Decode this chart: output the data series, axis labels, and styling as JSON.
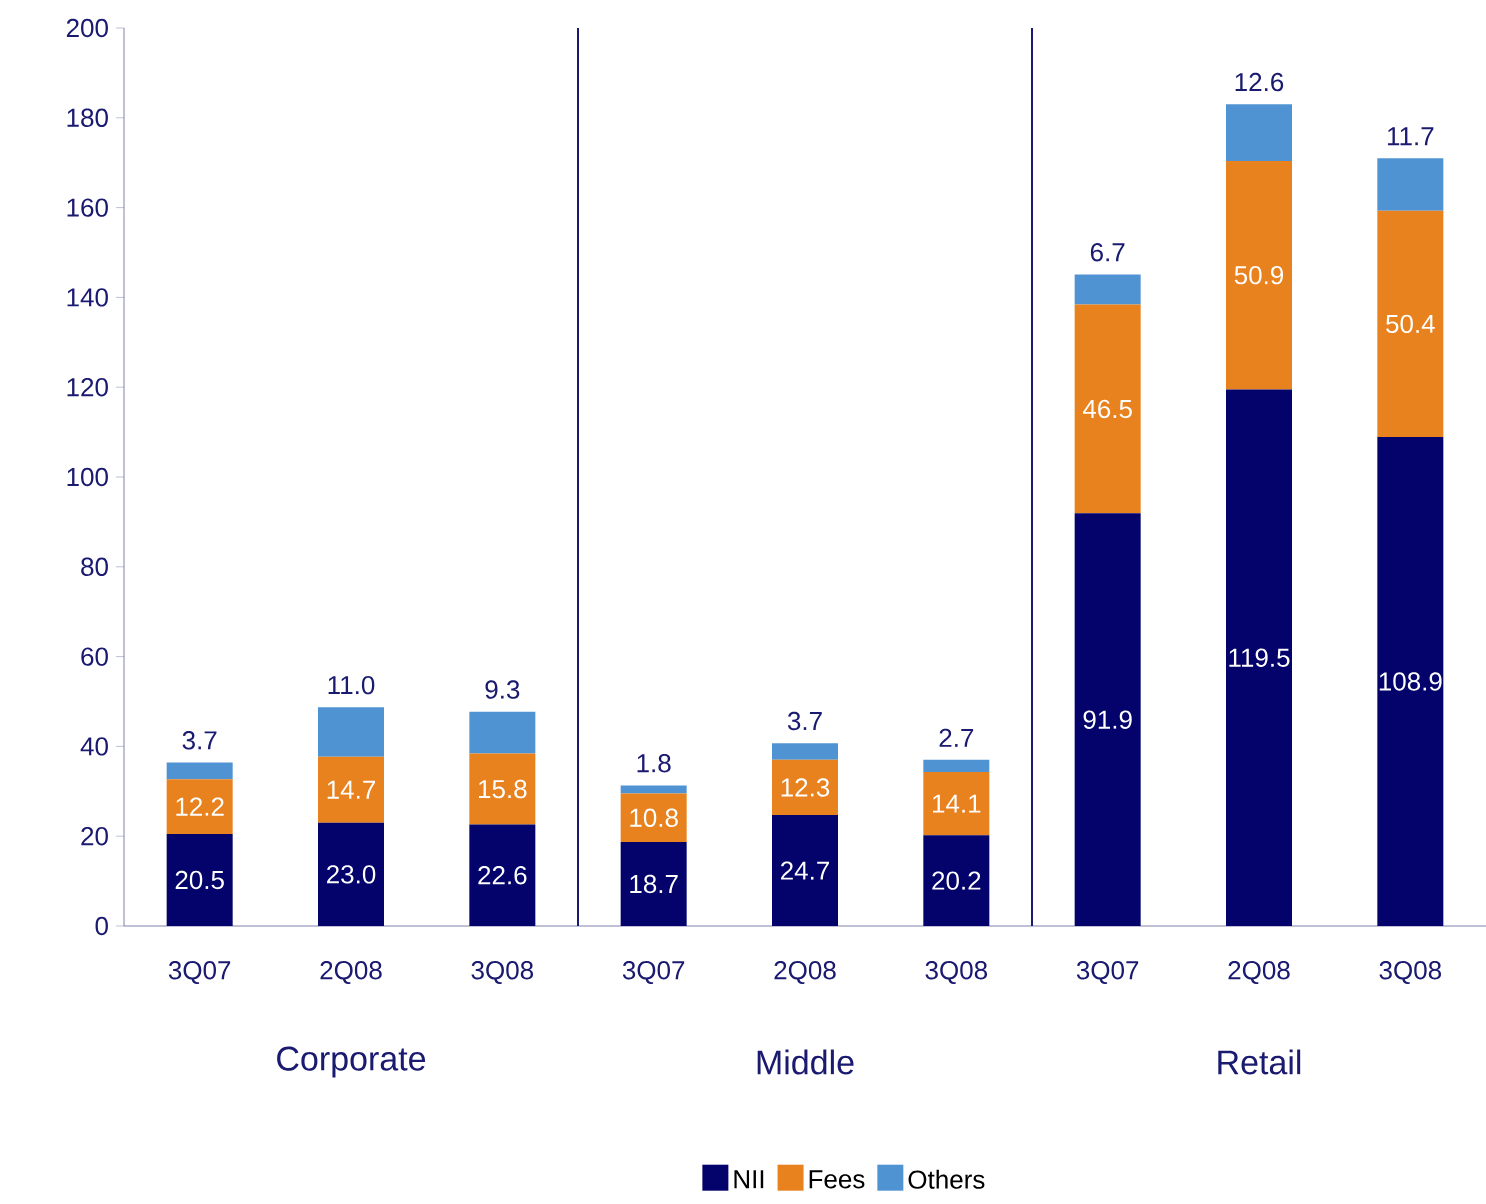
{
  "chart_data": {
    "type": "bar",
    "stacked": true,
    "categories": [
      "3Q07",
      "2Q08",
      "3Q08",
      "3Q07",
      "2Q08",
      "3Q08",
      "3Q07",
      "2Q08",
      "3Q08"
    ],
    "series": [
      {
        "name": "NII",
        "color": "#03036b",
        "values": [
          20.5,
          23.0,
          22.6,
          18.7,
          24.7,
          20.2,
          91.9,
          119.5,
          108.9
        ],
        "value_labels": [
          "20.5",
          "23.0",
          "22.6",
          "18.7",
          "24.7",
          "20.2",
          "91.9",
          "119.5",
          "108.9"
        ]
      },
      {
        "name": "Fees",
        "color": "#e8821e",
        "values": [
          12.2,
          14.7,
          15.8,
          10.8,
          12.3,
          14.1,
          46.5,
          50.9,
          50.4
        ],
        "value_labels": [
          "12.2",
          "14.7",
          "15.8",
          "10.8",
          "12.3",
          "14.1",
          "46.5",
          "50.9",
          "50.4"
        ]
      },
      {
        "name": "Others",
        "color": "#5093d3",
        "values": [
          3.7,
          11.0,
          9.3,
          1.8,
          3.7,
          2.7,
          6.7,
          12.6,
          11.7
        ],
        "value_labels": [
          "3.7",
          "11.0",
          "9.3",
          "1.8",
          "3.7",
          "2.7",
          "6.7",
          "12.6",
          "11.7"
        ]
      }
    ],
    "ylim": [
      0,
      200
    ],
    "yticks": [
      0,
      20,
      40,
      60,
      80,
      100,
      120,
      140,
      160,
      180,
      200
    ],
    "grid": false,
    "legend": "bottom",
    "annotations": [
      "Corporate",
      "Middle",
      "Retail"
    ]
  }
}
